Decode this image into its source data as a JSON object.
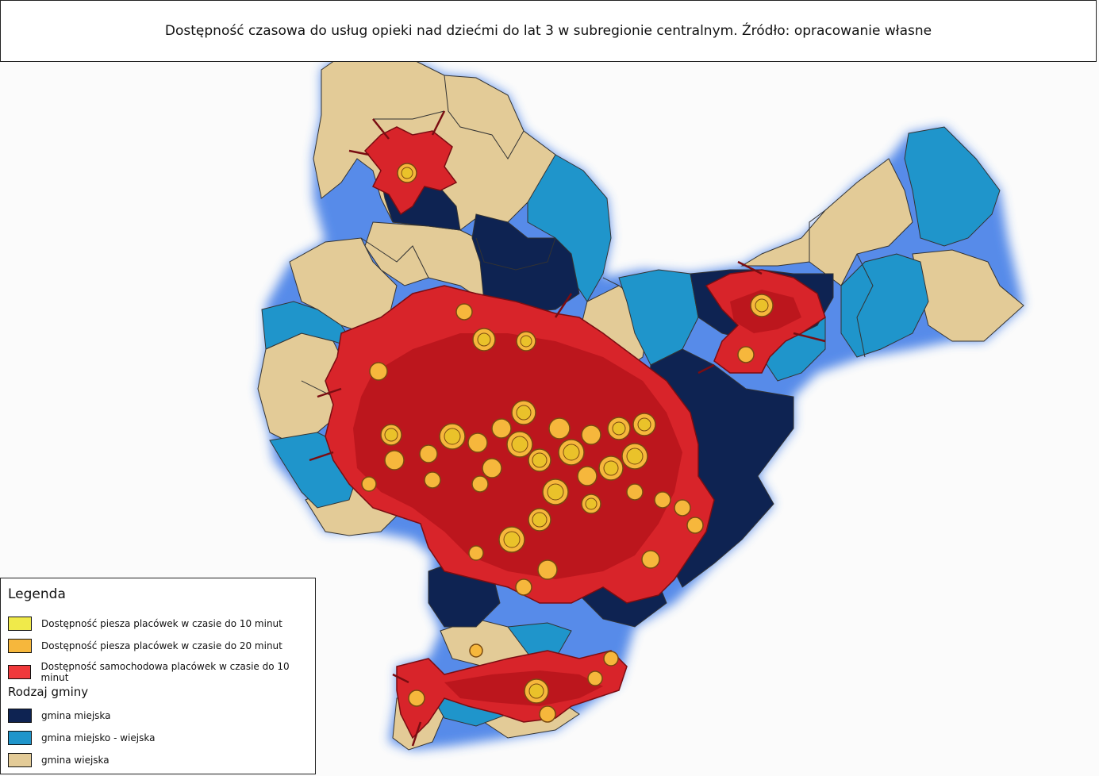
{
  "title": "Dostępność czasowa do usług opieki nad dziećmi do lat 3 w subregionie centralnym. Źródło: opracowanie własne",
  "legend": {
    "heading": "Legenda",
    "access_items": [
      {
        "label": "Dostępność piesza placówek w czasie do 10 minut",
        "color": "#f0ea4a"
      },
      {
        "label": "Dostępność piesza placówek w czasie do 20 minut",
        "color": "#f6b73c"
      },
      {
        "label": "Dostępność samochodowa placówek w czasie do 10 minut",
        "color": "#f0393b"
      }
    ],
    "subheading": "Rodzaj gminy",
    "gmina_items": [
      {
        "label": "gmina miejska",
        "color": "#0e2352"
      },
      {
        "label": "gmina miejsko - wiejska",
        "color": "#1f95cb"
      },
      {
        "label": "gmina wiejska",
        "color": "#e3cb97"
      }
    ]
  },
  "map_colors": {
    "border_glow": "#2e6fe0",
    "car_access_dark": "#b3121a",
    "walk_outline": "#7a4a10"
  }
}
